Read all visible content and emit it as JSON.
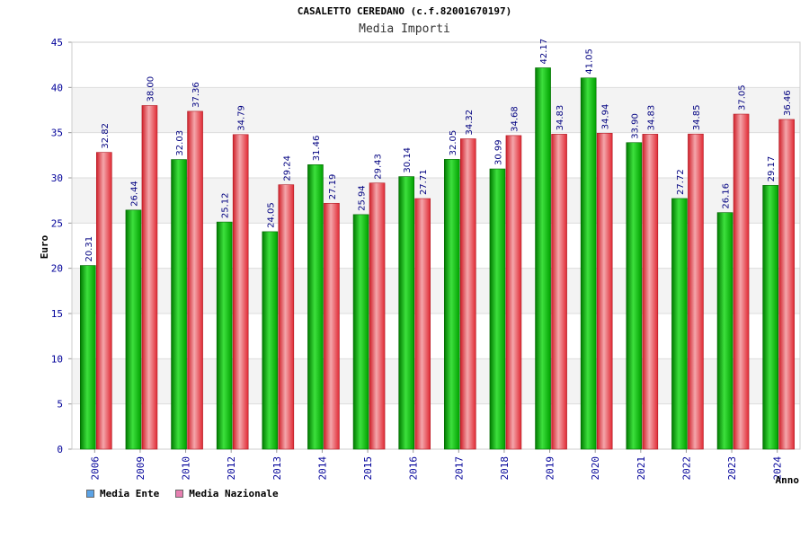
{
  "chart_data": {
    "type": "bar",
    "title": "CASALETTO CEREDANO (c.f.82001670197)",
    "subtitle": "Media Importi",
    "xlabel": "Anno",
    "ylabel": "Euro",
    "ylim": [
      0,
      45
    ],
    "yticks": [
      0,
      5,
      10,
      15,
      20,
      25,
      30,
      35,
      40,
      45
    ],
    "categories": [
      "2006",
      "2009",
      "2010",
      "2012",
      "2013",
      "2014",
      "2015",
      "2016",
      "2017",
      "2018",
      "2019",
      "2020",
      "2021",
      "2022",
      "2023",
      "2024"
    ],
    "series": [
      {
        "name": "Media Ente",
        "color": "#00b400",
        "legend_color": "#5ba3e6",
        "values": [
          20.31,
          26.44,
          32.03,
          25.12,
          24.05,
          31.46,
          25.94,
          30.14,
          32.05,
          30.99,
          42.17,
          41.05,
          33.9,
          27.72,
          26.16,
          29.17
        ]
      },
      {
        "name": "Media Nazionale",
        "color": "#e8323c",
        "legend_color": "#e67fb0",
        "values": [
          32.82,
          38.0,
          37.36,
          34.79,
          29.24,
          27.19,
          29.43,
          27.71,
          34.32,
          34.68,
          34.83,
          34.94,
          34.83,
          34.85,
          37.05,
          36.46
        ]
      }
    ],
    "grid": true,
    "legend_position": "bottom-left"
  }
}
